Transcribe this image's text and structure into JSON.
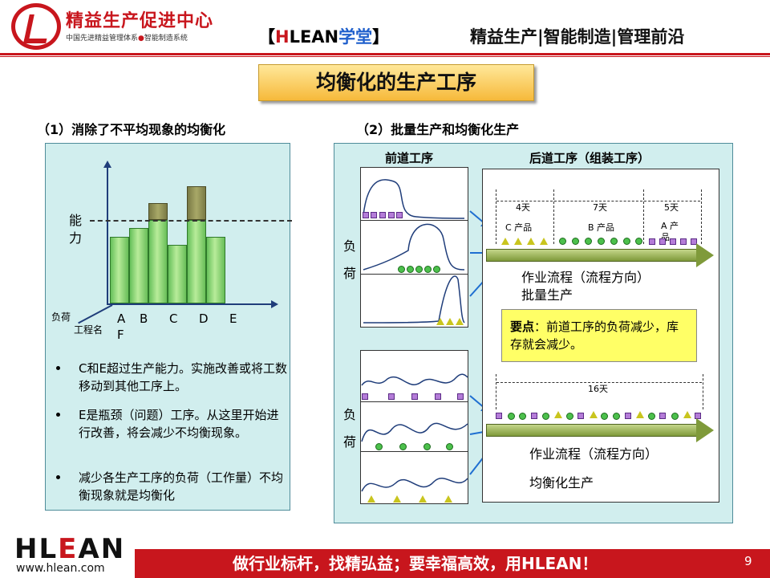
{
  "header": {
    "org_name": "精益生产促进中心",
    "org_subtitle_1": "中国先进精益管理体系",
    "org_subtitle_sep": "●",
    "org_subtitle_2": "智能制造系统",
    "brand_left_bracket": "【",
    "brand_h": "H",
    "brand_lean": "LEAN",
    "brand_school": "学堂",
    "brand_right_bracket": "】",
    "tagline": "精益生产|智能制造|管理前沿",
    "accent_color": "#c8161d"
  },
  "slide": {
    "title": "均衡化的生产工序",
    "left_section_title": "（1）消除了不平均现象的均衡化",
    "right_section_title": "（2）批量生产和均衡化生产",
    "page_number": "9"
  },
  "left_chart": {
    "capacity_label": "能力",
    "y_axis_label": "负荷",
    "x_axis_label": "工程名",
    "process_labels": [
      "A",
      "B",
      "C",
      "D",
      "E",
      "F"
    ],
    "capacity_level": 10,
    "bars": [
      {
        "name": "A",
        "load": 8
      },
      {
        "name": "B",
        "load": 9
      },
      {
        "name": "C",
        "load": 12
      },
      {
        "name": "D",
        "load": 7
      },
      {
        "name": "E",
        "load": 14
      },
      {
        "name": "F",
        "load": 8
      }
    ]
  },
  "bullets": [
    "C和E超过生产能力。实施改善或将工数移动到其他工序上。",
    "E是瓶颈（问题）工序。从这里开始进行改善，将会减少不均衡现象。",
    "减少各生产工序的负荷（工作量）不均衡现象就是均衡化"
  ],
  "right_panel": {
    "front_header": "前道工序",
    "back_header": "后道工序（组装工序）",
    "load_label_top": [
      "负",
      "荷"
    ],
    "load_label_bottom": [
      "负",
      "荷"
    ],
    "batch": {
      "segments": [
        {
          "days": "4天",
          "product": "C 产品"
        },
        {
          "days": "7天",
          "product": "B 产品"
        },
        {
          "days": "5天",
          "product": "A 产品"
        }
      ],
      "flow_label": "作业流程（流程方向）",
      "mode_label": "批量生产"
    },
    "note": {
      "bold": "要点",
      "text": "：前道工序的负荷减少，库存就会减少。"
    },
    "level": {
      "days": "16天",
      "flow_label": "作业流程（流程方向）",
      "mode_label": "均衡化生产"
    }
  },
  "footer": {
    "logo_h": "H",
    "logo_l": "L",
    "logo_e": "E",
    "logo_an": "AN",
    "url": "www.hlean.com",
    "slogan": "做行业标杆，找精弘益；要幸福高效，用HLEAN！"
  }
}
